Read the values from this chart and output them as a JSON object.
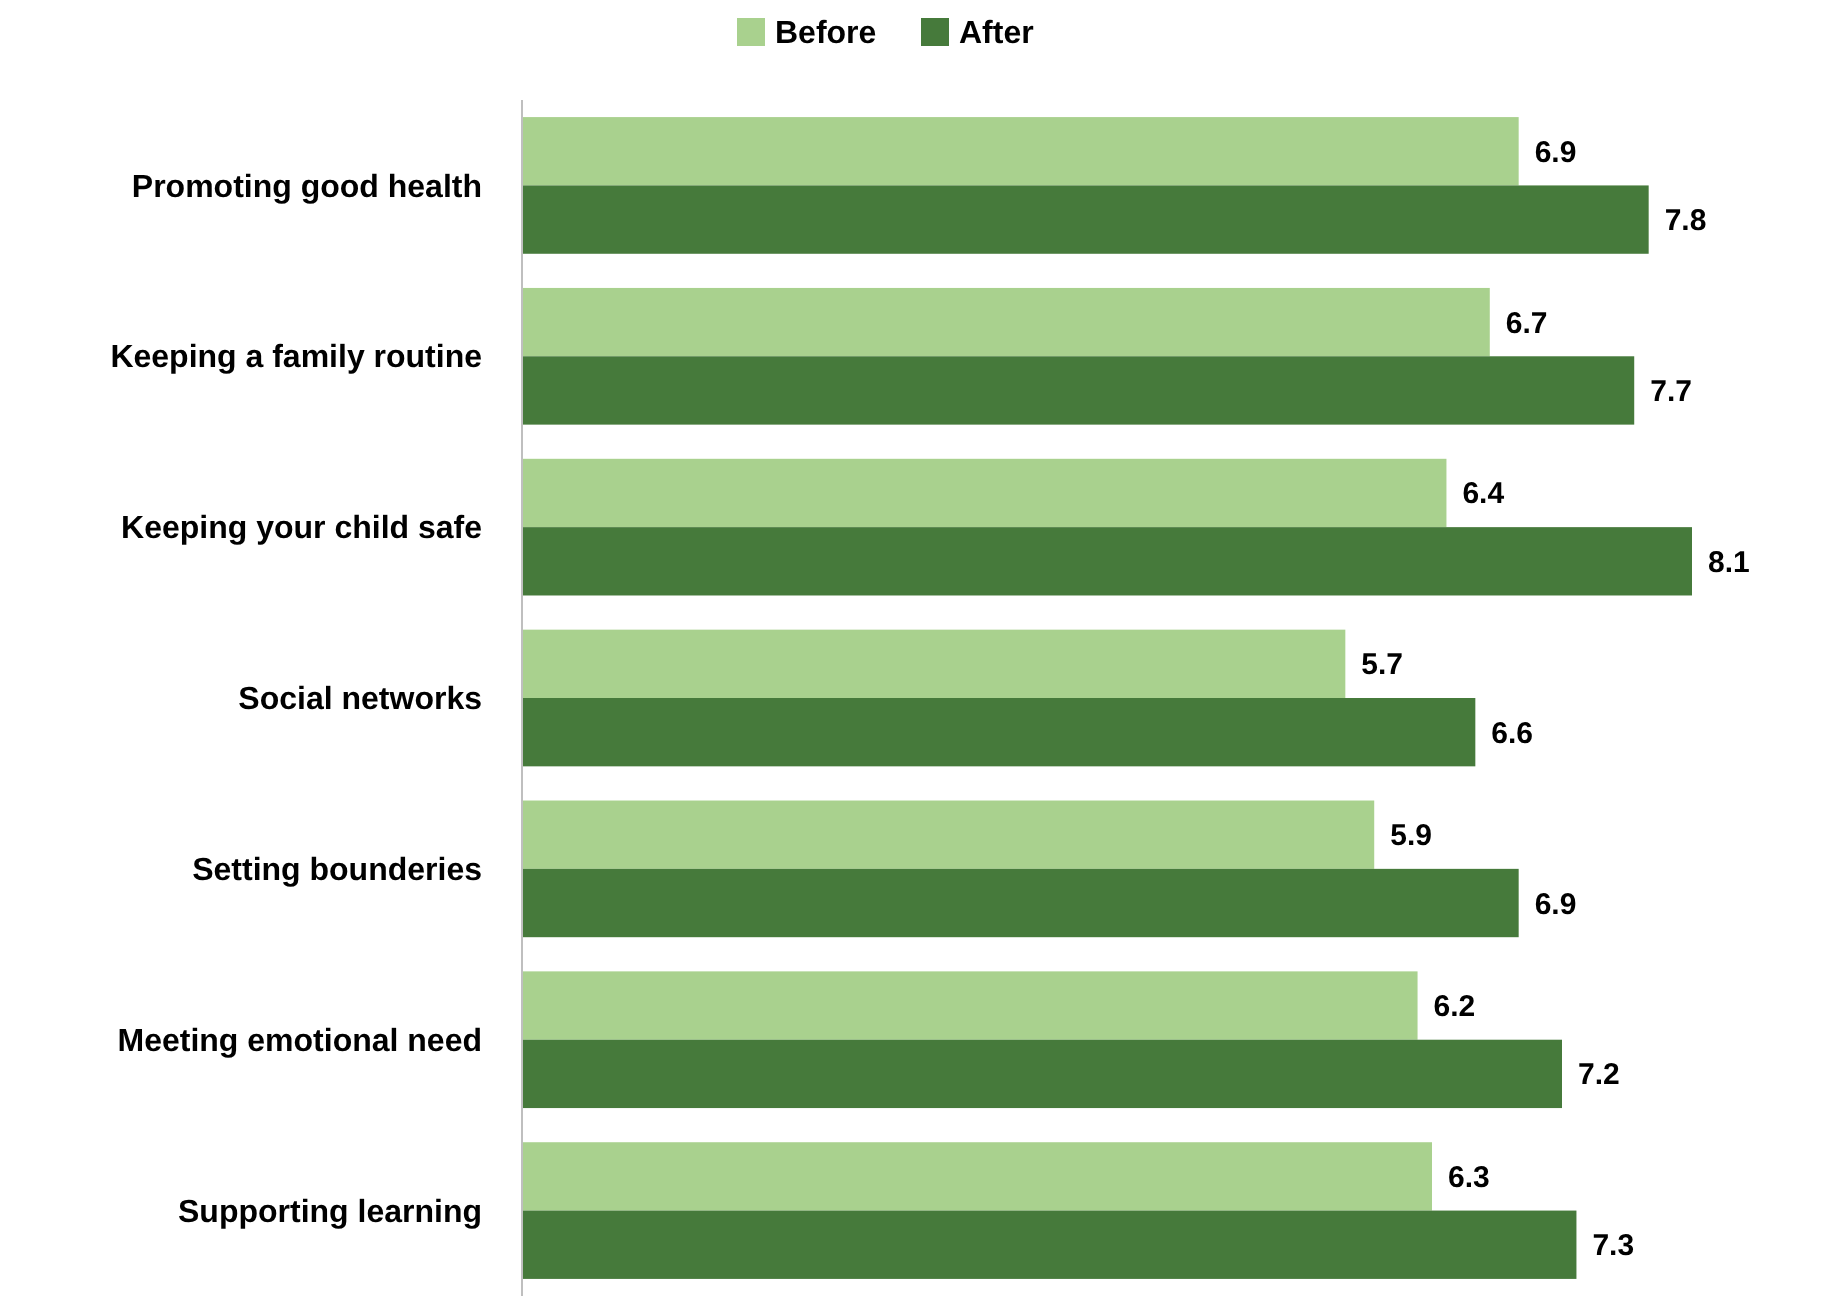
{
  "chart_data": {
    "type": "bar",
    "orientation": "horizontal",
    "categories": [
      "Promoting good health",
      "Keeping a family routine",
      "Keeping your child safe",
      "Social networks",
      "Setting bounderies",
      "Meeting emotional need",
      "Supporting learning"
    ],
    "series": [
      {
        "name": "Before",
        "color": "#a9d18e",
        "values": [
          6.9,
          6.7,
          6.4,
          5.7,
          5.9,
          6.2,
          6.3
        ]
      },
      {
        "name": "After",
        "color": "#467a3b",
        "values": [
          7.8,
          7.7,
          8.1,
          6.6,
          6.9,
          7.2,
          7.3
        ]
      }
    ],
    "data_labels": true,
    "legend": "top"
  }
}
